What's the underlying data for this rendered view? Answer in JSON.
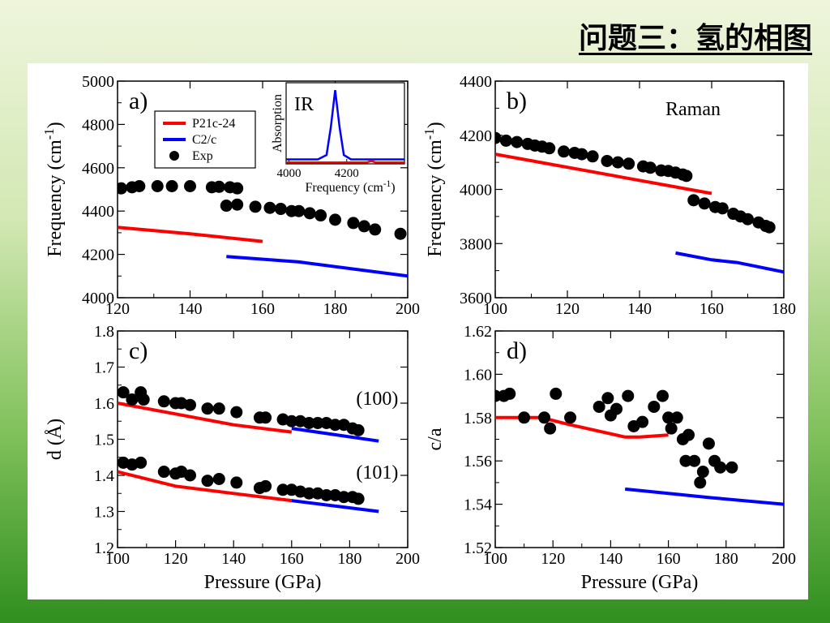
{
  "slide": {
    "title": "问题三：氢的相图"
  },
  "chart_data": [
    {
      "panel": "a)",
      "type": "line",
      "xlim": [
        120,
        200
      ],
      "ylim": [
        4000,
        5000
      ],
      "xticks": [
        120,
        140,
        160,
        180,
        200
      ],
      "yticks": [
        4000,
        4200,
        4400,
        4600,
        4800,
        5000
      ],
      "ylabel": "Frequency (cm-1)",
      "series": [
        {
          "name": "P21c-24",
          "color": "#ff0000",
          "kind": "line",
          "points": [
            [
              120,
              4325
            ],
            [
              140,
              4295
            ],
            [
              160,
              4260
            ]
          ]
        },
        {
          "name": "C2/c",
          "color": "#0000ff",
          "kind": "line",
          "points": [
            [
              150,
              4190
            ],
            [
              170,
              4165
            ],
            [
              200,
              4100
            ]
          ]
        },
        {
          "name": "Exp",
          "color": "#000000",
          "kind": "scatter",
          "points": [
            [
              121,
              4505
            ],
            [
              124,
              4510
            ],
            [
              126,
              4515
            ],
            [
              131,
              4515
            ],
            [
              135,
              4515
            ],
            [
              140,
              4515
            ],
            [
              146,
              4510
            ],
            [
              148,
              4512
            ],
            [
              151,
              4510
            ],
            [
              153,
              4505
            ],
            [
              150,
              4425
            ],
            [
              153,
              4430
            ],
            [
              158,
              4420
            ],
            [
              162,
              4415
            ],
            [
              165,
              4410
            ],
            [
              168,
              4400
            ],
            [
              170,
              4400
            ],
            [
              173,
              4390
            ],
            [
              176,
              4380
            ],
            [
              180,
              4360
            ],
            [
              185,
              4345
            ],
            [
              188,
              4330
            ],
            [
              191,
              4315
            ],
            [
              198,
              4295
            ]
          ]
        }
      ],
      "legend": [
        "P21c-24",
        "C2/c",
        "Exp"
      ],
      "legend_position": "top-left",
      "inset": {
        "label": "IR",
        "xticks": [
          4000,
          4200
        ],
        "xlabel": "Frequency (cm-1)",
        "ylabel": "Absorption",
        "xlim": [
          3990,
          4400
        ],
        "ylim": [
          0,
          1.1
        ],
        "series": [
          {
            "color": "#0000ff",
            "points": [
              [
                3990,
                0.06
              ],
              [
                4100,
                0.06
              ],
              [
                4130,
                0.12
              ],
              [
                4145,
                0.5
              ],
              [
                4160,
                1.0
              ],
              [
                4175,
                0.5
              ],
              [
                4190,
                0.12
              ],
              [
                4215,
                0.06
              ],
              [
                4400,
                0.06
              ]
            ]
          },
          {
            "color": "#ff0000",
            "points": [
              [
                3990,
                0.02
              ],
              [
                4270,
                0.02
              ],
              [
                4285,
                0.04
              ],
              [
                4300,
                0.02
              ],
              [
                4400,
                0.02
              ]
            ]
          }
        ]
      }
    },
    {
      "panel": "b)",
      "type": "line",
      "annotation": "Raman",
      "xlim": [
        100,
        180
      ],
      "ylim": [
        3600,
        4400
      ],
      "xticks": [
        100,
        120,
        140,
        160,
        180
      ],
      "yticks": [
        3600,
        3800,
        4000,
        4200,
        4400
      ],
      "ylabel": "Frequency (cm-1)",
      "series": [
        {
          "color": "#ff0000",
          "kind": "line",
          "points": [
            [
              100,
              4130
            ],
            [
              160,
              3985
            ]
          ]
        },
        {
          "color": "#0000ff",
          "kind": "line",
          "points": [
            [
              150,
              3765
            ],
            [
              160,
              3740
            ],
            [
              167,
              3730
            ],
            [
              180,
              3695
            ]
          ]
        },
        {
          "color": "#000000",
          "kind": "scatter",
          "points": [
            [
              100,
              4190
            ],
            [
              103,
              4180
            ],
            [
              106,
              4175
            ],
            [
              109,
              4168
            ],
            [
              111,
              4162
            ],
            [
              113,
              4158
            ],
            [
              115,
              4152
            ],
            [
              119,
              4140
            ],
            [
              122,
              4135
            ],
            [
              124,
              4130
            ],
            [
              127,
              4122
            ],
            [
              131,
              4105
            ],
            [
              134,
              4100
            ],
            [
              137,
              4095
            ],
            [
              141,
              4085
            ],
            [
              143,
              4080
            ],
            [
              146,
              4070
            ],
            [
              148,
              4068
            ],
            [
              150,
              4062
            ],
            [
              152,
              4055
            ],
            [
              153,
              4050
            ],
            [
              155,
              3960
            ],
            [
              158,
              3948
            ],
            [
              161,
              3935
            ],
            [
              163,
              3930
            ],
            [
              166,
              3910
            ],
            [
              168,
              3900
            ],
            [
              170,
              3890
            ],
            [
              173,
              3878
            ],
            [
              175,
              3865
            ],
            [
              176,
              3860
            ]
          ]
        }
      ]
    },
    {
      "panel": "c)",
      "type": "line",
      "xlim": [
        100,
        200
      ],
      "ylim": [
        1.2,
        1.8
      ],
      "xticks": [
        100,
        120,
        140,
        160,
        180,
        200
      ],
      "yticks": [
        1.2,
        1.3,
        1.4,
        1.5,
        1.6,
        1.7,
        1.8
      ],
      "xlabel": "Pressure (GPa)",
      "ylabel": "d (Å)",
      "annotations": [
        {
          "text": "(100)",
          "x": 180,
          "y": 1.605
        },
        {
          "text": "(101)",
          "x": 180,
          "y": 1.4
        }
      ],
      "series": [
        {
          "color": "#ff0000",
          "kind": "line",
          "points": [
            [
              100,
              1.6
            ],
            [
              120,
              1.57
            ],
            [
              140,
              1.54
            ],
            [
              160,
              1.52
            ]
          ]
        },
        {
          "color": "#0000ff",
          "kind": "line",
          "points": [
            [
              160,
              1.53
            ],
            [
              190,
              1.495
            ]
          ]
        },
        {
          "color": "#ff0000",
          "kind": "line",
          "points": [
            [
              100,
              1.41
            ],
            [
              120,
              1.37
            ],
            [
              140,
              1.35
            ],
            [
              160,
              1.33
            ]
          ]
        },
        {
          "color": "#0000ff",
          "kind": "line",
          "points": [
            [
              160,
              1.33
            ],
            [
              190,
              1.3
            ]
          ]
        },
        {
          "color": "#000000",
          "kind": "scatter",
          "points": [
            [
              102,
              1.63
            ],
            [
              105,
              1.61
            ],
            [
              108,
              1.63
            ],
            [
              109,
              1.61
            ],
            [
              116,
              1.605
            ],
            [
              120,
              1.6
            ],
            [
              122,
              1.6
            ],
            [
              125,
              1.595
            ],
            [
              131,
              1.585
            ],
            [
              135,
              1.585
            ],
            [
              141,
              1.575
            ],
            [
              149,
              1.56
            ],
            [
              151,
              1.56
            ],
            [
              157,
              1.555
            ],
            [
              160,
              1.55
            ],
            [
              163,
              1.55
            ],
            [
              166,
              1.545
            ],
            [
              169,
              1.545
            ],
            [
              172,
              1.545
            ],
            [
              175,
              1.54
            ],
            [
              178,
              1.54
            ],
            [
              181,
              1.53
            ],
            [
              183,
              1.525
            ]
          ]
        },
        {
          "color": "#000000",
          "kind": "scatter",
          "points": [
            [
              102,
              1.435
            ],
            [
              105,
              1.43
            ],
            [
              108,
              1.435
            ],
            [
              116,
              1.41
            ],
            [
              120,
              1.405
            ],
            [
              122,
              1.41
            ],
            [
              125,
              1.4
            ],
            [
              131,
              1.385
            ],
            [
              135,
              1.39
            ],
            [
              141,
              1.38
            ],
            [
              149,
              1.365
            ],
            [
              151,
              1.37
            ],
            [
              157,
              1.36
            ],
            [
              160,
              1.36
            ],
            [
              163,
              1.355
            ],
            [
              166,
              1.35
            ],
            [
              169,
              1.35
            ],
            [
              172,
              1.345
            ],
            [
              175,
              1.345
            ],
            [
              178,
              1.34
            ],
            [
              181,
              1.34
            ],
            [
              183,
              1.335
            ]
          ]
        }
      ]
    },
    {
      "panel": "d)",
      "type": "line",
      "xlim": [
        100,
        200
      ],
      "ylim": [
        1.52,
        1.62
      ],
      "xticks": [
        100,
        120,
        140,
        160,
        180,
        200
      ],
      "yticks": [
        1.52,
        1.54,
        1.56,
        1.58,
        1.6,
        1.62
      ],
      "xlabel": "Pressure (GPa)",
      "ylabel": "c/a",
      "series": [
        {
          "color": "#ff0000",
          "kind": "line",
          "points": [
            [
              100,
              1.58
            ],
            [
              116,
              1.58
            ],
            [
              125,
              1.577
            ],
            [
              145,
              1.571
            ],
            [
              150,
              1.571
            ],
            [
              160,
              1.572
            ]
          ]
        },
        {
          "color": "#0000ff",
          "kind": "line",
          "points": [
            [
              145,
              1.547
            ],
            [
              175,
              1.543
            ],
            [
              200,
              1.54
            ]
          ]
        },
        {
          "color": "#000000",
          "kind": "scatter",
          "points": [
            [
              100,
              1.59
            ],
            [
              103,
              1.59
            ],
            [
              105,
              1.591
            ],
            [
              110,
              1.58
            ],
            [
              117,
              1.58
            ],
            [
              119,
              1.575
            ],
            [
              121,
              1.591
            ],
            [
              126,
              1.58
            ],
            [
              136,
              1.585
            ],
            [
              139,
              1.589
            ],
            [
              140,
              1.581
            ],
            [
              142,
              1.584
            ],
            [
              146,
              1.59
            ],
            [
              148,
              1.576
            ],
            [
              151,
              1.578
            ],
            [
              155,
              1.585
            ],
            [
              158,
              1.59
            ],
            [
              160,
              1.58
            ],
            [
              161,
              1.575
            ],
            [
              163,
              1.58
            ],
            [
              165,
              1.57
            ],
            [
              166,
              1.56
            ],
            [
              167,
              1.572
            ],
            [
              169,
              1.56
            ],
            [
              171,
              1.55
            ],
            [
              172,
              1.555
            ],
            [
              174,
              1.568
            ],
            [
              176,
              1.56
            ],
            [
              178,
              1.557
            ],
            [
              182,
              1.557
            ]
          ]
        }
      ]
    }
  ]
}
